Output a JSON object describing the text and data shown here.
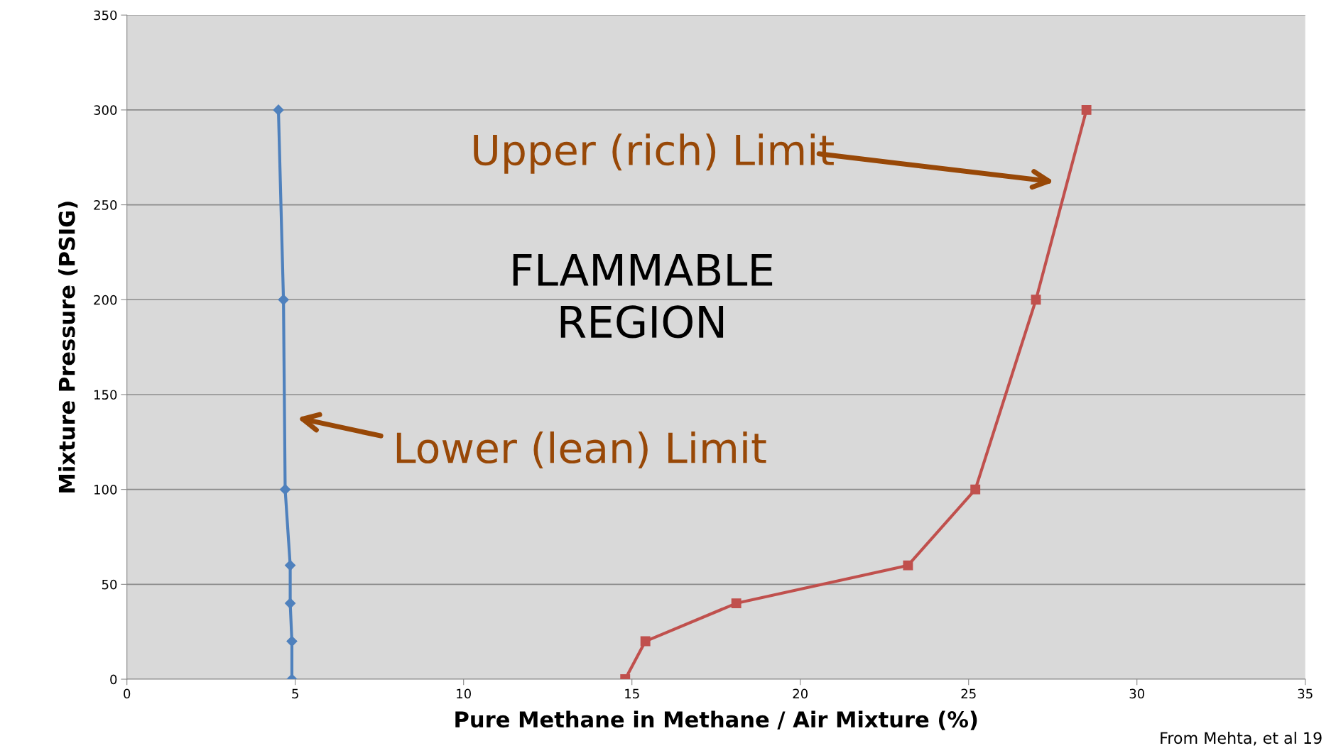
{
  "chart_data": {
    "type": "line",
    "xlabel": "Pure Methane in Methane / Air Mixture (%)",
    "ylabel": "Mixture Pressure (PSIG)",
    "series": [
      {
        "color": "#4f81bd",
        "marker": "diamond",
        "x": [
          4.5,
          4.65,
          4.7,
          4.85,
          4.85,
          4.9,
          4.9
        ],
        "values": [
          300,
          200,
          100,
          60,
          40,
          20,
          0
        ]
      },
      {
        "color": "#c0504d",
        "marker": "square",
        "x": [
          14.8,
          15.4,
          18.1,
          23.2,
          25.2,
          27.0,
          28.5
        ],
        "values": [
          0,
          20,
          40,
          60,
          100,
          200,
          300
        ]
      }
    ],
    "xlim": [
      0,
      35
    ],
    "xticks": [
      0,
      5,
      10,
      15,
      20,
      25,
      30,
      35
    ],
    "ylim": [
      0,
      350
    ],
    "yticks": [
      0,
      50,
      100,
      150,
      200,
      250,
      300,
      350
    ],
    "grid": "y",
    "legend": false,
    "annotations": [
      "Upper (rich) Limit",
      "Lower (lean) Limit",
      "FLAMMABLE\nREGION",
      "From Mehta, et al 19"
    ]
  }
}
